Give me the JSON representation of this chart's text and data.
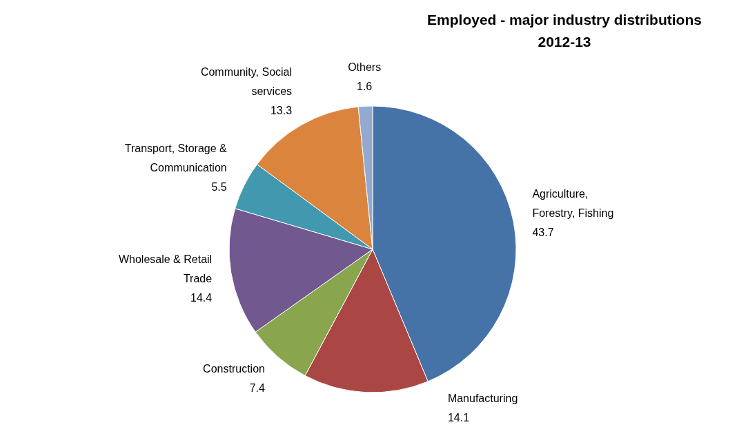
{
  "chart_data": {
    "type": "pie",
    "title": "Employed - major industry distributions 2012-13",
    "categories": [
      "Agriculture, Forestry, Fishing",
      "Manufacturing",
      "Construction",
      "Wholesale & Retail Trade",
      "Transport, Storage & Communication",
      "Community, Social services",
      "Others"
    ],
    "values": [
      43.7,
      14.1,
      7.4,
      14.4,
      5.5,
      13.3,
      1.6
    ],
    "colors": [
      "#4572a7",
      "#aa4643",
      "#89a54e",
      "#71588f",
      "#4198af",
      "#db843d",
      "#93a9cf"
    ],
    "data_labels": true
  }
}
